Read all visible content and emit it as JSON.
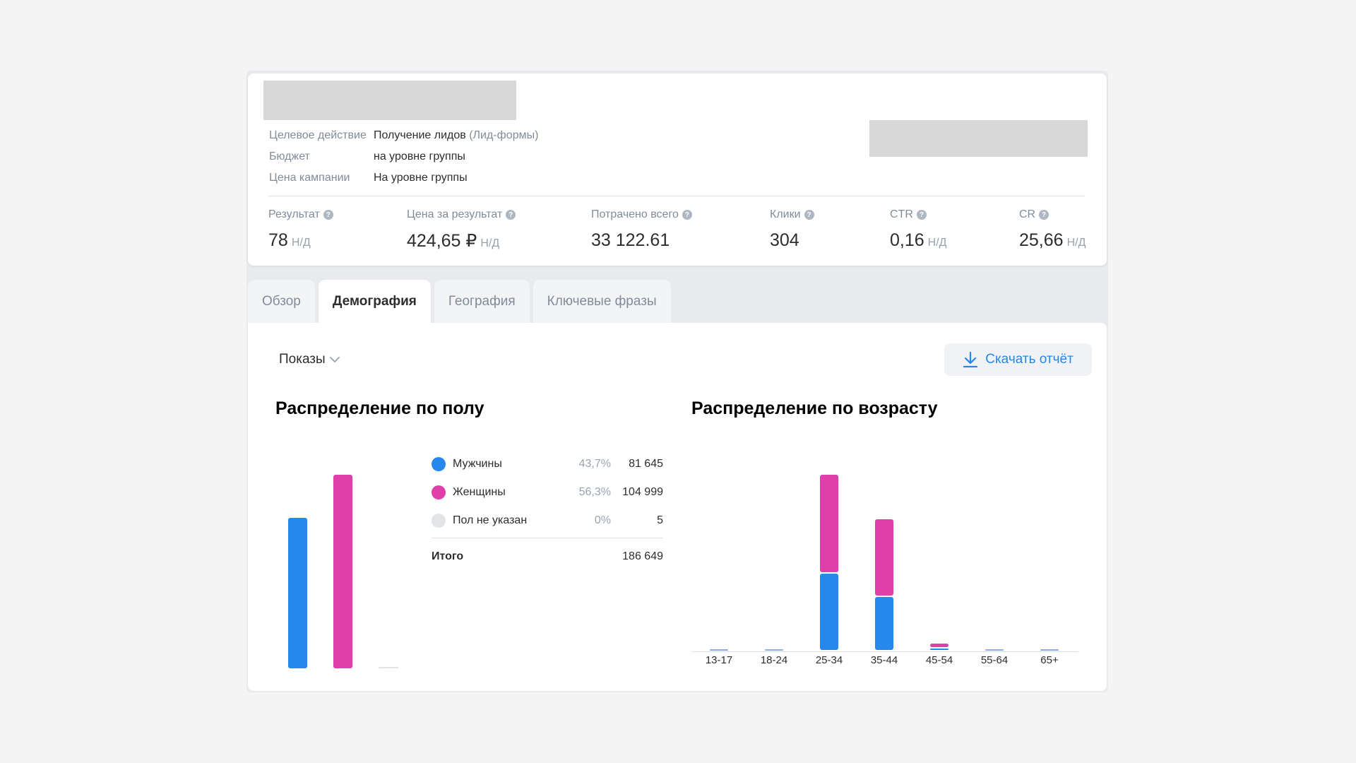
{
  "campaign": {
    "info": [
      {
        "key": "Целевое действие",
        "value": "Получение лидов",
        "value_muted": "(Лид-формы)"
      },
      {
        "key": "Бюджет",
        "value": "на уровне группы",
        "value_muted": ""
      },
      {
        "key": "Цена кампании",
        "value": "На уровне группы",
        "value_muted": ""
      }
    ]
  },
  "metrics": [
    {
      "label": "Результат",
      "value": "78",
      "na": "Н/Д"
    },
    {
      "label": "Цена за результат",
      "value": "424,65 ₽",
      "na": "Н/Д"
    },
    {
      "label": "Потрачено всего",
      "value": "33 122.61",
      "na": ""
    },
    {
      "label": "Клики",
      "value": "304",
      "na": ""
    },
    {
      "label": "CTR",
      "value": "0,16",
      "na": "Н/Д"
    },
    {
      "label": "CR",
      "value": "25,66",
      "na": "Н/Д"
    }
  ],
  "tabs": [
    {
      "label": "Обзор",
      "active": false
    },
    {
      "label": "Демография",
      "active": true
    },
    {
      "label": "География",
      "active": false
    },
    {
      "label": "Ключевые фразы",
      "active": false
    }
  ],
  "filter": {
    "label": "Показы"
  },
  "download": {
    "label": "Скачать отчёт"
  },
  "gender": {
    "title": "Распределение по полу",
    "rows": [
      {
        "name": "Мужчины",
        "pct": "43,7%",
        "value": "81 645",
        "color": "#2688eb"
      },
      {
        "name": "Женщины",
        "pct": "56,3%",
        "value": "104 999",
        "color": "#e03fab"
      },
      {
        "name": "Пол не указан",
        "pct": "0%",
        "value": "5",
        "color": "#e3e4e8"
      }
    ],
    "total_label": "Итого",
    "total_value": "186 649"
  },
  "age": {
    "title": "Распределение по возрасту"
  },
  "colors": {
    "male": "#2688eb",
    "female": "#e03fab",
    "unknown": "#e3e4e8",
    "accent": "#2688eb"
  },
  "chart_data": [
    {
      "type": "bar",
      "categories": [
        "Мужчины",
        "Женщины",
        "Пол не указан"
      ],
      "values": [
        81645,
        104999,
        5
      ]
    },
    {
      "type": "bar",
      "categories": [
        "13-17",
        "18-24",
        "25-34",
        "35-44",
        "45-54",
        "55-64",
        "65+"
      ],
      "series": [
        {
          "name": "Мужчины",
          "values": [
            0,
            0,
            43000,
            30000,
            700,
            0,
            0
          ]
        },
        {
          "name": "Женщины",
          "values": [
            0,
            0,
            55000,
            43000,
            2500,
            0,
            0
          ]
        }
      ]
    }
  ]
}
